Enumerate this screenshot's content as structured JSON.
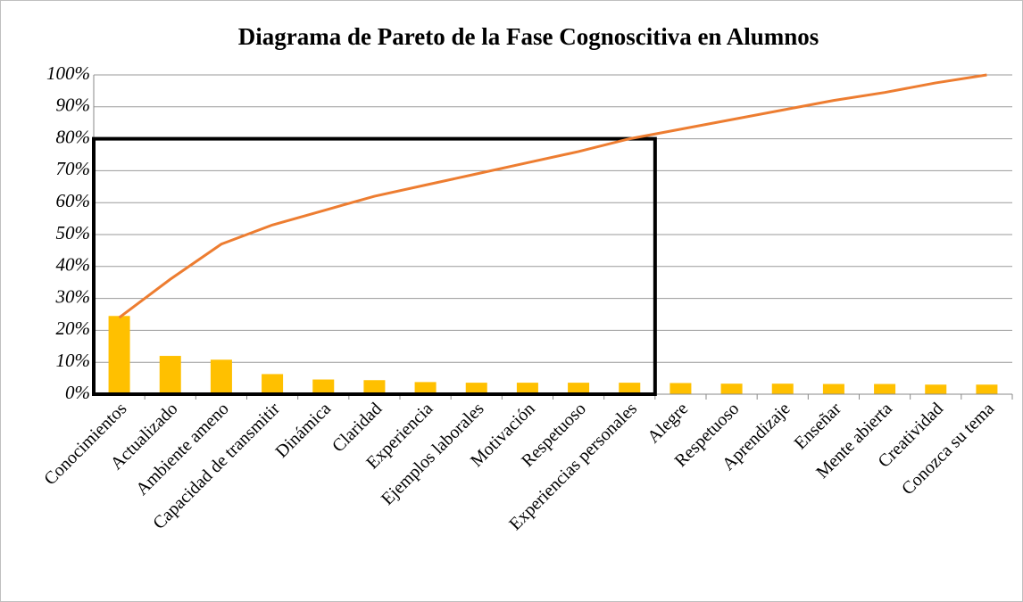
{
  "chart_data": {
    "type": "pareto",
    "title": "Diagrama de Pareto de la Fase Cognoscitiva en Alumnos",
    "categories": [
      "Conocimientos",
      "Actualizado",
      "Ambiente ameno",
      "Capacidad de transmitir",
      "Dinámica",
      "Claridad",
      "Experiencia",
      "Ejemplos laborales",
      "Motivación",
      "Respetuoso",
      "Experiencias personales",
      "Alegre",
      "Respetuoso",
      "Aprendizaje",
      "Enseñar",
      "Mente abierta",
      "Creatividad",
      "Conozca su tema"
    ],
    "series": [
      {
        "type": "bar",
        "color": "#ffc000",
        "values": [
          24.5,
          12,
          10.8,
          6.3,
          4.6,
          4.4,
          3.8,
          3.6,
          3.6,
          3.6,
          3.6,
          3.5,
          3.3,
          3.3,
          3.2,
          3.2,
          3.0,
          3.0
        ]
      },
      {
        "type": "line",
        "color": "#ed7d31",
        "values": [
          24,
          36,
          47,
          53,
          57.5,
          62,
          65.5,
          69,
          72.5,
          76,
          80,
          83,
          86,
          89,
          92,
          94.5,
          97.5,
          100
        ]
      }
    ],
    "ylim": [
      0,
      100
    ],
    "yticks": [
      {
        "value": 0,
        "label": "0%"
      },
      {
        "value": 10,
        "label": "10%"
      },
      {
        "value": 20,
        "label": "20%"
      },
      {
        "value": 30,
        "label": "30%"
      },
      {
        "value": 40,
        "label": "40%"
      },
      {
        "value": 50,
        "label": "50%"
      },
      {
        "value": 60,
        "label": "60%"
      },
      {
        "value": 70,
        "label": "70%"
      },
      {
        "value": 80,
        "label": "80%"
      },
      {
        "value": 90,
        "label": "90%"
      },
      {
        "value": 100,
        "label": "100%"
      }
    ],
    "grid": true
  }
}
